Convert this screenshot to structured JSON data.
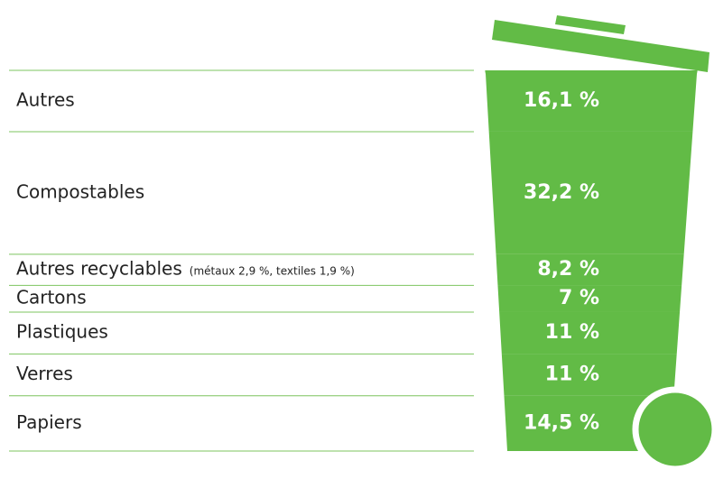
{
  "chart_data": {
    "type": "bar",
    "categories": [
      "Autres",
      "Compostables",
      "Autres recyclables",
      "Cartons",
      "Plastiques",
      "Verres",
      "Papiers"
    ],
    "annotations": [
      "(métaux 2,9 %, textiles 1,9 %)"
    ],
    "values": [
      16.1,
      32.2,
      8.2,
      7,
      11,
      11,
      14.5
    ],
    "value_labels": [
      "16,1 %",
      "32,2 %",
      "8,2 %",
      "7 %",
      "11 %",
      "11 %",
      "14,5 %"
    ],
    "color": "#62bb46"
  }
}
